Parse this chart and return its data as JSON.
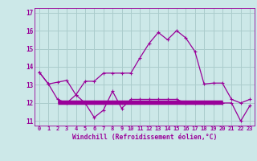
{
  "xlabel": "Windchill (Refroidissement éolien,°C)",
  "x": [
    0,
    1,
    2,
    3,
    4,
    5,
    6,
    7,
    8,
    9,
    10,
    11,
    12,
    13,
    14,
    15,
    16,
    17,
    18,
    19,
    20,
    21,
    22,
    23
  ],
  "line1": [
    13.7,
    13.05,
    13.15,
    13.25,
    12.45,
    13.2,
    13.2,
    13.65,
    13.65,
    13.65,
    13.65,
    14.5,
    15.3,
    15.9,
    15.5,
    16.0,
    15.6,
    14.85,
    13.05,
    13.1,
    13.1,
    12.2,
    12.0,
    12.2
  ],
  "line2": [
    13.7,
    13.05,
    12.2,
    12.0,
    12.45,
    12.0,
    11.2,
    11.6,
    12.65,
    11.7,
    12.2,
    12.2,
    12.2,
    12.2,
    12.2,
    12.2,
    12.0,
    12.0,
    12.0,
    12.0,
    12.0,
    12.0,
    11.0,
    11.85
  ],
  "hlines": [
    12.0,
    12.1,
    12.2
  ],
  "hline_xstart": 2,
  "hline_xend": 20,
  "line_color": "#990099",
  "bg_color": "#cce8e8",
  "grid_color": "#aacccc",
  "text_color": "#990099",
  "ylim": [
    10.75,
    17.25
  ],
  "xlim": [
    -0.5,
    23.5
  ],
  "yticks": [
    11,
    12,
    13,
    14,
    15,
    16,
    17
  ],
  "xticks": [
    0,
    1,
    2,
    3,
    4,
    5,
    6,
    7,
    8,
    9,
    10,
    11,
    12,
    13,
    14,
    15,
    16,
    17,
    18,
    19,
    20,
    21,
    22,
    23
  ]
}
